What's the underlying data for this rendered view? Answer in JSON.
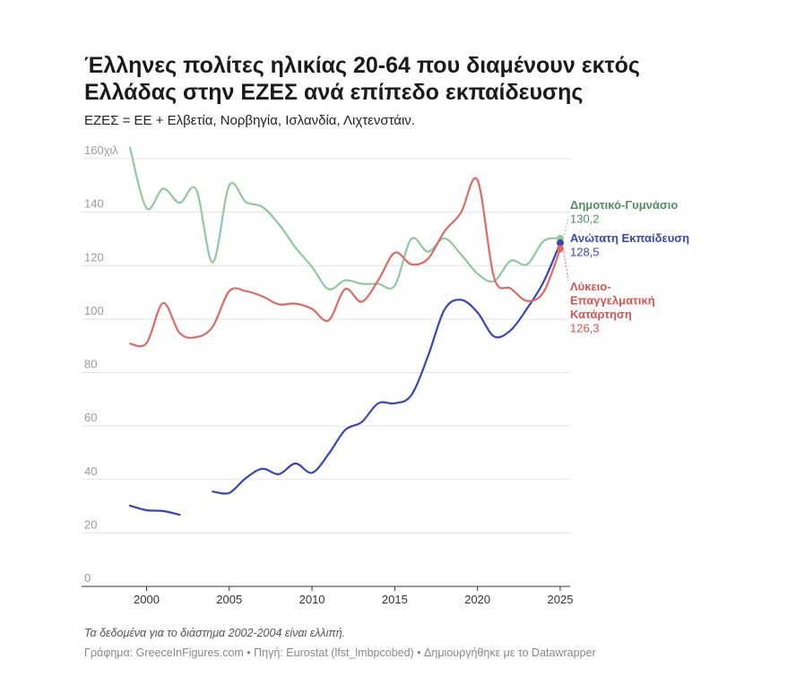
{
  "header": {
    "title": "Έλληνες πολίτες ηλικίας 20-64 που διαμένουν εκτός Ελλάδας στην ΕΖΕΣ ανά επίπεδο εκπαίδευσης",
    "subtitle": "ΕΖΕΣ = ΕΕ + Ελβετία, Νορβηγία, Ισλανδία, Λιχτενστάιν."
  },
  "footer": {
    "note": "Τα δεδομένα για το διάστημα 2002-2004 είναι ελλιπή.",
    "source": "Γράφημα: GreeceInFigures.com • Πηγή: Eurostat (lfst_lmbpcobed) • Δημιουργήθηκε με το Datawrapper"
  },
  "chart_data": {
    "type": "line",
    "title": "Έλληνες πολίτες ηλικίας 20-64 που διαμένουν εκτός Ελλάδας στην ΕΖΕΣ ανά επίπεδο εκπαίδευσης",
    "xlabel": "",
    "ylabel": "",
    "xlim": [
      1999,
      2025
    ],
    "ylim": [
      0,
      160
    ],
    "x_ticks": [
      2000,
      2005,
      2010,
      2015,
      2020,
      2025
    ],
    "y_ticks": [
      0,
      20,
      40,
      60,
      80,
      100,
      120,
      140,
      160
    ],
    "y_tick_labels": [
      "0",
      "20",
      "40",
      "60",
      "80",
      "100",
      "120",
      "140",
      "160χιλ"
    ],
    "grid": true,
    "legend": "labels at line ends",
    "series": [
      {
        "name": "Δημοτικό-Γυμνάσιο",
        "color": "#8fc9a0",
        "label_color": "#4e8f63",
        "end_label_value": "130,2",
        "points": [
          [
            1999,
            164.2
          ],
          [
            2000,
            141.5
          ],
          [
            2001,
            148.8
          ],
          [
            2002,
            143.5
          ],
          [
            2003,
            148.5
          ],
          [
            2004,
            121.2
          ],
          [
            2005,
            150
          ],
          [
            2006,
            143.8
          ],
          [
            2007,
            142
          ],
          [
            2008,
            135.5
          ],
          [
            2009,
            126.8
          ],
          [
            2010,
            119.5
          ],
          [
            2011,
            111.2
          ],
          [
            2012,
            114.5
          ],
          [
            2013,
            113.2
          ],
          [
            2014,
            113.2
          ],
          [
            2015,
            112.5
          ],
          [
            2016,
            130
          ],
          [
            2017,
            125.2
          ],
          [
            2018,
            130.2
          ],
          [
            2019,
            124.2
          ],
          [
            2020,
            117
          ],
          [
            2021,
            114.2
          ],
          [
            2022,
            121.8
          ],
          [
            2023,
            120.5
          ],
          [
            2024,
            129.2
          ],
          [
            2025,
            130.2
          ]
        ]
      },
      {
        "name": "Ανώτατη Εκπαίδευση",
        "color": "#3a46b8",
        "label_color": "#3a46b8",
        "end_label_value": "128,5",
        "points": [
          [
            1999,
            30.2
          ],
          [
            2000,
            28.5
          ],
          [
            2001,
            28.2
          ],
          [
            2002,
            26.8
          ],
          [
            2003,
            null
          ],
          [
            2004,
            35.5
          ],
          [
            2005,
            35
          ],
          [
            2006,
            40.5
          ],
          [
            2007,
            44
          ],
          [
            2008,
            42
          ],
          [
            2009,
            46
          ],
          [
            2010,
            42.5
          ],
          [
            2011,
            49.5
          ],
          [
            2012,
            58.5
          ],
          [
            2013,
            61.5
          ],
          [
            2014,
            68.5
          ],
          [
            2015,
            68.5
          ],
          [
            2016,
            71.5
          ],
          [
            2017,
            86
          ],
          [
            2018,
            103.5
          ],
          [
            2019,
            107.2
          ],
          [
            2020,
            102.5
          ],
          [
            2021,
            93.5
          ],
          [
            2022,
            95.8
          ],
          [
            2023,
            104
          ],
          [
            2024,
            114
          ],
          [
            2025,
            128.5
          ]
        ]
      },
      {
        "name": "Λύκειο-Επαγγελματική Κατάρτηση",
        "color": "#e06a63",
        "label_color": "#d9534f",
        "end_label_value": "126,3",
        "points": [
          [
            1999,
            90.8
          ],
          [
            2000,
            91
          ],
          [
            2001,
            106
          ],
          [
            2002,
            94.8
          ],
          [
            2003,
            93.2
          ],
          [
            2004,
            97.2
          ],
          [
            2005,
            110.5
          ],
          [
            2006,
            110.5
          ],
          [
            2007,
            108.5
          ],
          [
            2008,
            105.5
          ],
          [
            2009,
            105.8
          ],
          [
            2010,
            103.8
          ],
          [
            2011,
            99.5
          ],
          [
            2012,
            111.2
          ],
          [
            2013,
            106.5
          ],
          [
            2014,
            114.5
          ],
          [
            2015,
            124.8
          ],
          [
            2016,
            120.5
          ],
          [
            2017,
            122.5
          ],
          [
            2018,
            132.8
          ],
          [
            2019,
            139.8
          ],
          [
            2020,
            152
          ],
          [
            2021,
            115.5
          ],
          [
            2022,
            111.5
          ],
          [
            2023,
            106.8
          ],
          [
            2024,
            110.2
          ],
          [
            2025,
            126.3
          ]
        ]
      }
    ],
    "end_labels": [
      {
        "lines": [
          "Δημοτικό-Γυμνάσιο"
        ],
        "value": "130,2",
        "color": "#4e8f63"
      },
      {
        "lines": [
          "Ανώτατη Εκπαίδευση"
        ],
        "value": "128,5",
        "color": "#3a46b8"
      },
      {
        "lines": [
          "Λύκειο-",
          "Επαγγελματική",
          "Κατάρτηση"
        ],
        "value": "126,3",
        "color": "#d9534f"
      }
    ]
  }
}
